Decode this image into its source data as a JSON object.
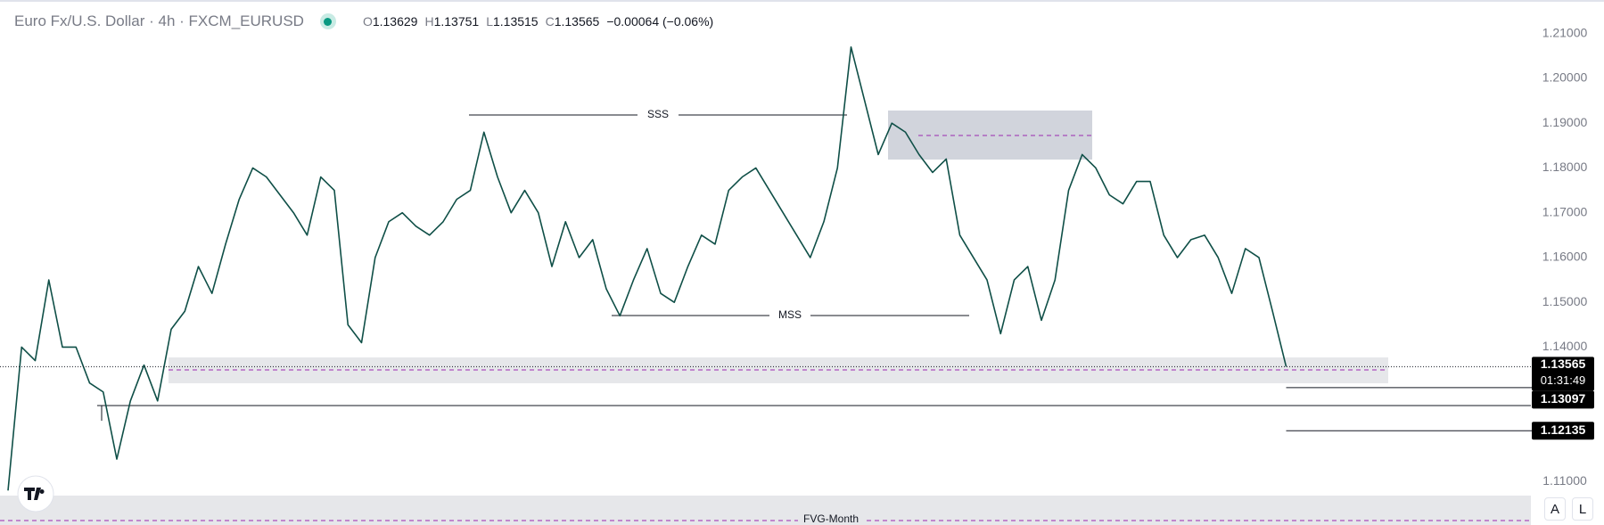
{
  "header": {
    "symbol": "Euro Fx/U.S. Dollar · 4h · FXCM_EURUSD",
    "ohlc": [
      {
        "key": "O",
        "value": "1.13629"
      },
      {
        "key": "H",
        "value": "1.13751"
      },
      {
        "key": "L",
        "value": "1.13515"
      }
    ],
    "close_key": "C",
    "change": "−0.00064 (−0.06%)"
  },
  "chart_data": {
    "type": "line",
    "color": "#0f4f47",
    "values": [
      1.108,
      1.14,
      1.137,
      1.155,
      1.14,
      1.14,
      1.132,
      1.13,
      1.115,
      1.128,
      1.136,
      1.128,
      1.144,
      1.148,
      1.158,
      1.152,
      1.163,
      1.173,
      1.18,
      1.178,
      1.174,
      1.17,
      1.165,
      1.178,
      1.175,
      1.145,
      1.141,
      1.16,
      1.168,
      1.17,
      1.167,
      1.165,
      1.168,
      1.173,
      1.175,
      1.188,
      1.178,
      1.17,
      1.175,
      1.17,
      1.158,
      1.168,
      1.16,
      1.164,
      1.153,
      1.147,
      1.155,
      1.162,
      1.152,
      1.15,
      1.158,
      1.165,
      1.163,
      1.175,
      1.178,
      1.18,
      1.175,
      1.17,
      1.165,
      1.16,
      1.168,
      1.18,
      1.207,
      1.195,
      1.183,
      1.19,
      1.188,
      1.183,
      1.179,
      1.182,
      1.165,
      1.16,
      1.155,
      1.143,
      1.155,
      1.158,
      1.146,
      1.155,
      1.175,
      1.183,
      1.18,
      1.174,
      1.172,
      1.177,
      1.177,
      1.165,
      1.16,
      1.164,
      1.165,
      1.16,
      1.152,
      1.162,
      1.16,
      1.148,
      1.13565
    ],
    "ylim": [
      1.1003,
      1.2175
    ],
    "yticks": [
      {
        "value": 1.11,
        "label": "1.11000"
      },
      {
        "value": 1.14,
        "label": "1.14000"
      },
      {
        "value": 1.15,
        "label": "1.15000"
      },
      {
        "value": 1.16,
        "label": "1.16000"
      },
      {
        "value": 1.17,
        "label": "1.17000"
      },
      {
        "value": 1.18,
        "label": "1.18000"
      },
      {
        "value": 1.19,
        "label": "1.19000"
      },
      {
        "value": 1.2,
        "label": "1.20000"
      },
      {
        "value": 1.21,
        "label": "1.21000"
      }
    ],
    "last_price": 1.13565,
    "countdown": "01:31:49",
    "levels": [
      1.13097,
      1.12135
    ],
    "annotations": [
      "SSS",
      "MSS",
      "FVG-Month"
    ],
    "buttons": [
      "A",
      "L"
    ]
  }
}
